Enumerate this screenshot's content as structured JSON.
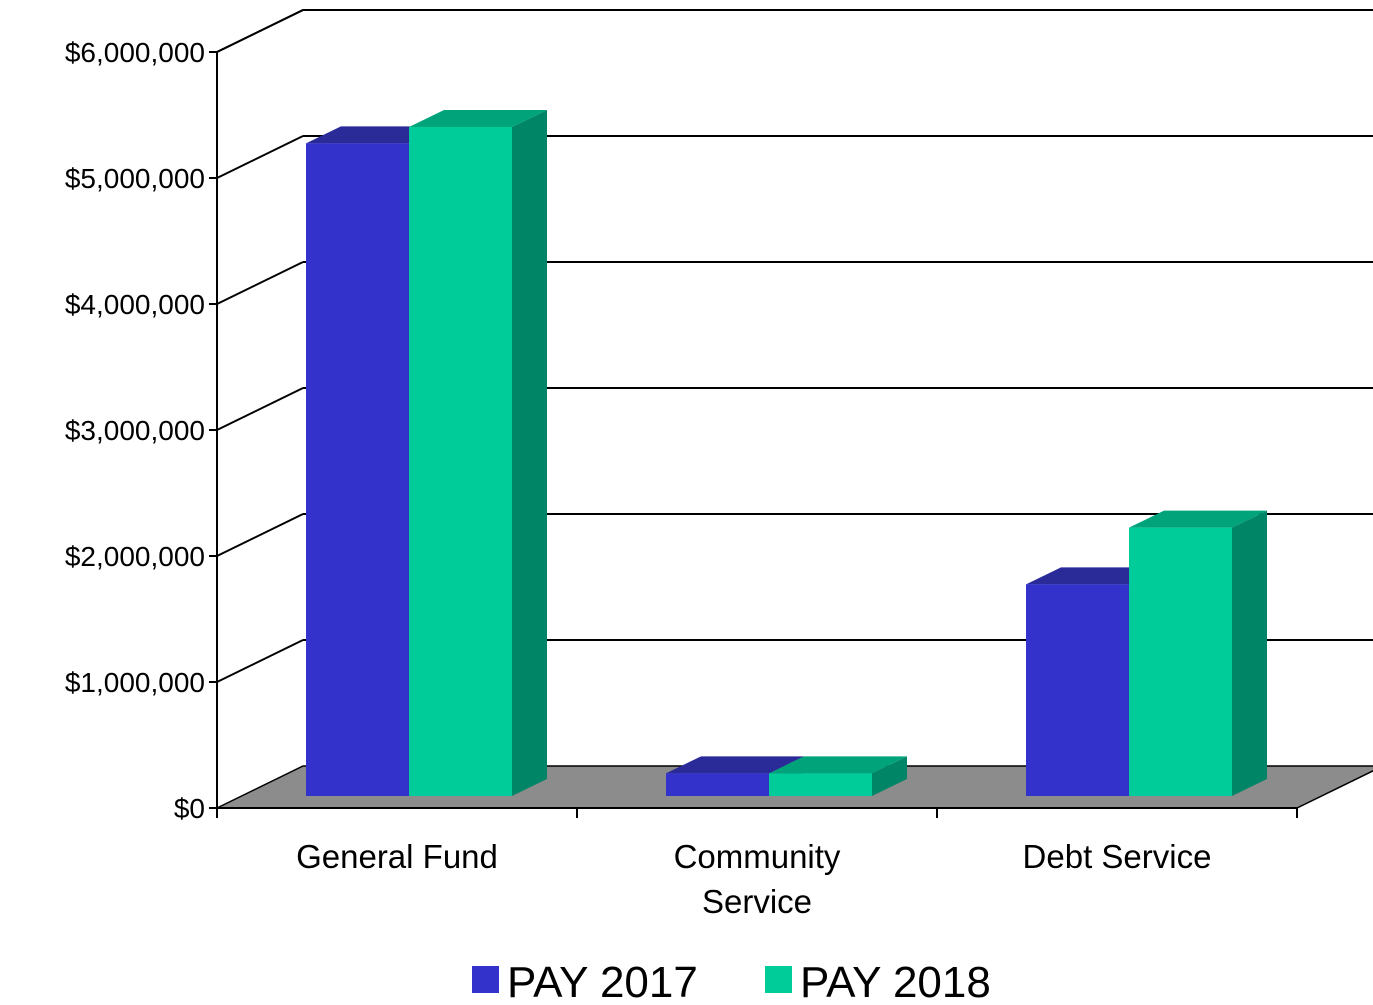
{
  "chart_data": {
    "type": "bar",
    "categories": [
      [
        "General Fund"
      ],
      [
        "Community",
        "Service"
      ],
      [
        "Debt Service"
      ]
    ],
    "series": [
      {
        "name": "PAY 2017",
        "values": [
          5180000,
          180000,
          1680000
        ],
        "color": "#3333cc",
        "top_color": "#2a2a99",
        "side_color": "#22228a"
      },
      {
        "name": "PAY 2018",
        "values": [
          5310000,
          180000,
          2130000
        ],
        "color": "#00cc99",
        "top_color": "#00a37a",
        "side_color": "#008566"
      }
    ],
    "ylim": [
      0,
      6000000
    ],
    "yticks": [
      "$0",
      "$1,000,000",
      "$2,000,000",
      "$3,000,000",
      "$4,000,000",
      "$5,000,000",
      "$6,000,000"
    ],
    "grid": true,
    "floor_color": "#8c8c8c",
    "legend_position": "bottom"
  }
}
